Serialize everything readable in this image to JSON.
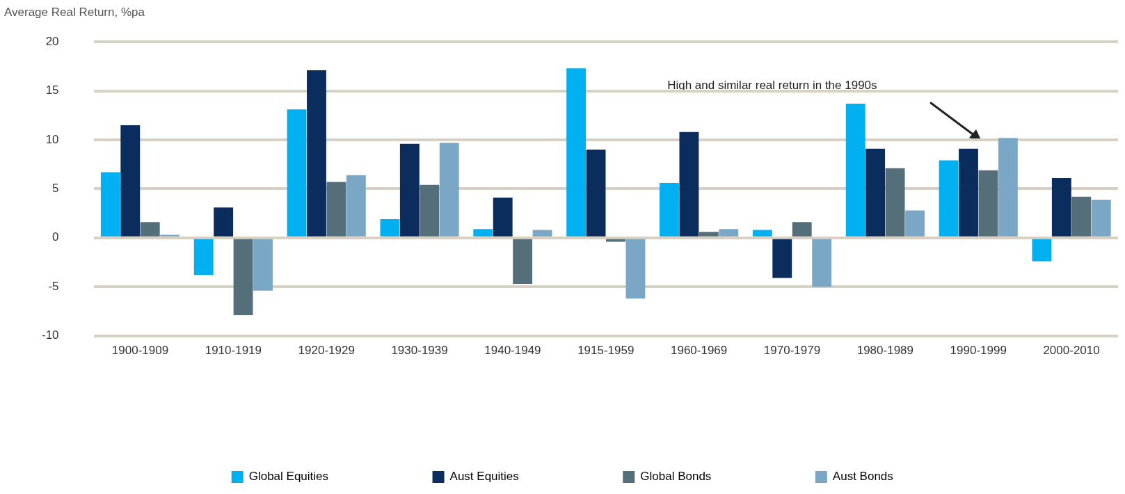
{
  "chart_data": {
    "type": "bar",
    "ylabel": "Average Real Return, %pa",
    "categories": [
      "1900-1909",
      "1910-1919",
      "1920-1929",
      "1930-1939",
      "1940-1949",
      "1915-1959",
      "1960-1969",
      "1970-1979",
      "1980-1989",
      "1990-1999",
      "2000-2010"
    ],
    "series": [
      {
        "name": "Global Equities",
        "color": "#00b0f0",
        "values": [
          6.7,
          -3.8,
          13.1,
          1.9,
          0.9,
          17.3,
          5.6,
          0.8,
          13.7,
          7.9,
          -2.4
        ]
      },
      {
        "name": "Aust Equities",
        "color": "#0a2d5e",
        "values": [
          11.5,
          3.1,
          17.1,
          9.6,
          4.1,
          9.0,
          10.8,
          -4.1,
          9.1,
          9.1,
          6.1
        ]
      },
      {
        "name": "Global Bonds",
        "color": "#546e7a",
        "values": [
          1.6,
          -7.9,
          5.7,
          5.4,
          -4.7,
          -0.4,
          0.6,
          1.6,
          7.1,
          6.9,
          4.2
        ]
      },
      {
        "name": "Aust Bonds",
        "color": "#7ba7c7",
        "values": [
          0.3,
          -5.4,
          6.4,
          9.7,
          0.8,
          -6.2,
          0.9,
          -5.0,
          2.8,
          10.2,
          3.9
        ]
      }
    ],
    "ylim": [
      -10,
      20
    ],
    "yticks": [
      -10,
      -5,
      0,
      5,
      10,
      15,
      20
    ],
    "grid": "y",
    "legend": "bottom",
    "annotations": [
      "High and similar real return in the 1990s"
    ]
  }
}
